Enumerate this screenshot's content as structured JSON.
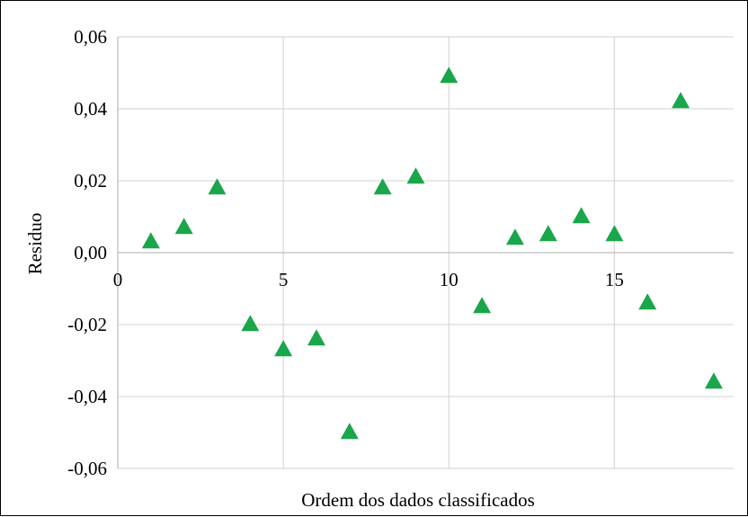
{
  "chart_data": {
    "type": "scatter",
    "title": "",
    "xlabel": "Ordem dos dados classificados",
    "ylabel": "Residuo",
    "xlim": [
      0,
      18.6
    ],
    "ylim": [
      -0.06,
      0.06
    ],
    "x_ticks": [
      0,
      5,
      10,
      15
    ],
    "x_tick_labels": [
      "0",
      "5",
      "10",
      "15"
    ],
    "y_ticks": [
      -0.06,
      -0.04,
      -0.02,
      0.0,
      0.02,
      0.04,
      0.06
    ],
    "y_tick_labels": [
      "-0,06",
      "-0,04",
      "-0,02",
      "0,00",
      "0,02",
      "0,04",
      "0,06"
    ],
    "grid": true,
    "legend": "none",
    "marker": "triangle",
    "series": [
      {
        "x": [
          1,
          2,
          3,
          4,
          5,
          6,
          7,
          8,
          9,
          10,
          11,
          12,
          13,
          14,
          15,
          16,
          17,
          18
        ],
        "y": [
          0.003,
          0.007,
          0.018,
          -0.02,
          -0.027,
          -0.024,
          -0.05,
          0.018,
          0.021,
          0.049,
          -0.015,
          0.004,
          0.005,
          0.01,
          0.005,
          -0.014,
          0.042,
          -0.036
        ]
      }
    ],
    "colors": {
      "marker": "#1aa64b",
      "grid": "#d9d9d9",
      "axis": "#bfbfbf",
      "frame": "#000000"
    }
  }
}
